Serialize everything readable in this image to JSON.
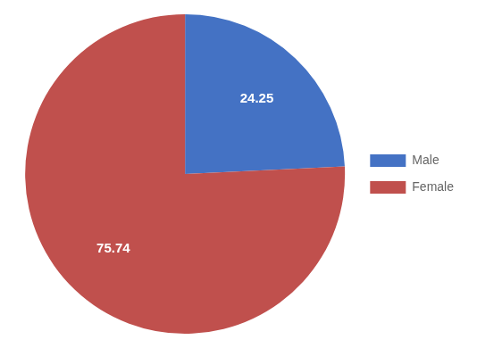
{
  "chart_data": {
    "type": "pie",
    "categories": [
      "Male",
      "Female"
    ],
    "values": [
      24.25,
      75.74
    ],
    "colors": [
      "#4472C4",
      "#C0504D"
    ],
    "data_labels": true,
    "legend": "right"
  }
}
